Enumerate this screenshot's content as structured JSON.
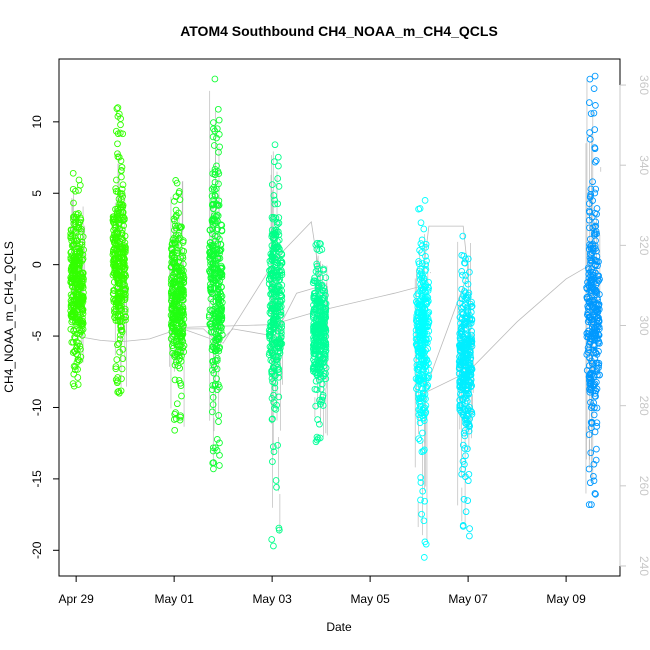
{
  "chart_data": {
    "type": "scatter",
    "title": "ATOM4 Southbound CH4_NOAA_m_CH4_QCLS",
    "xlabel": "Date",
    "ylabel": "CH4_NOAA_m_CH4_QCLS",
    "y2label": "",
    "xticks": [
      "Apr 29",
      "May 01",
      "May 03",
      "May 05",
      "May 07",
      "May 09"
    ],
    "xtick_values": [
      0,
      2,
      4,
      6,
      8,
      10
    ],
    "xlim": [
      -0.35,
      11.1
    ],
    "yticks": [
      -20,
      -15,
      -10,
      -5,
      0,
      5,
      10
    ],
    "ylim": [
      -21.8,
      14.4
    ],
    "y2ticks": [
      240,
      260,
      280,
      300,
      320,
      340,
      360
    ],
    "y2lim": [
      237.5,
      366.5
    ],
    "grid": false,
    "secondary_axis_color": "#c8c8c8",
    "series": [
      {
        "day": 0.02,
        "yrange": [
          -8.5,
          6.4
        ],
        "yrange_detail": [
          -8.0,
          5.0
        ],
        "color": "#33ff00"
      },
      {
        "day": 0.88,
        "yrange": [
          -9.0,
          11.0
        ],
        "yrange_detail": [
          -7.5,
          7.0
        ],
        "color": "#33ff00"
      },
      {
        "day": 2.07,
        "yrange": [
          -11.6,
          5.9
        ],
        "yrange_detail": [
          -9.0,
          4.5
        ],
        "color": "#22ff11"
      },
      {
        "day": 2.85,
        "yrange": [
          -14.3,
          13.0
        ],
        "yrange_detail": [
          -11.0,
          9.0
        ],
        "color": "#11ff33"
      },
      {
        "day": 4.07,
        "yrange": [
          -19.7,
          8.4
        ],
        "yrange_detail": [
          -12.0,
          6.5
        ],
        "color": "#00ff88"
      },
      {
        "day": 4.97,
        "yrange": [
          -12.4,
          1.5
        ],
        "yrange_detail": [
          -10.5,
          1.0
        ],
        "color": "#00ff99"
      },
      {
        "day": 7.07,
        "yrange": [
          -20.5,
          4.5
        ],
        "yrange_detail": [
          -13.0,
          3.0
        ],
        "color": "#00ffff"
      },
      {
        "day": 7.95,
        "yrange": [
          -19.0,
          2.0
        ],
        "yrange_detail": [
          -14.0,
          1.0
        ],
        "color": "#00eeff"
      },
      {
        "day": 10.55,
        "yrange": [
          -16.8,
          13.2
        ],
        "yrange_detail": [
          -14.5,
          7.0
        ],
        "color": "#0099ff"
      }
    ],
    "altitude_trace": {
      "color": "#bbbbbb",
      "points": [
        [
          0.0,
          -5.0
        ],
        [
          0.5,
          -5.3
        ],
        [
          0.9,
          -5.4
        ],
        [
          1.5,
          -5.2
        ],
        [
          2.1,
          -4.5
        ],
        [
          2.6,
          -4.5
        ],
        [
          2.9,
          -5.5
        ],
        [
          3.2,
          -4.5
        ],
        [
          4.05,
          -5.0
        ],
        [
          4.5,
          -2.0
        ],
        [
          5.0,
          -1.5
        ],
        [
          4.8,
          3.0
        ],
        [
          4.1,
          0.5
        ],
        [
          3.0,
          -5.5
        ],
        [
          2.1,
          -4.4
        ],
        [
          4.0,
          -4.2
        ],
        [
          5.0,
          -3.2
        ],
        [
          6.5,
          -2.0
        ],
        [
          7.05,
          -1.5
        ],
        [
          7.2,
          2.7
        ],
        [
          7.9,
          2.7
        ],
        [
          8.0,
          -0.6
        ],
        [
          7.1,
          -9.0
        ],
        [
          8.0,
          -7.5
        ],
        [
          9.0,
          -4.0
        ],
        [
          10.0,
          -1.0
        ],
        [
          10.5,
          0.0
        ]
      ]
    }
  }
}
